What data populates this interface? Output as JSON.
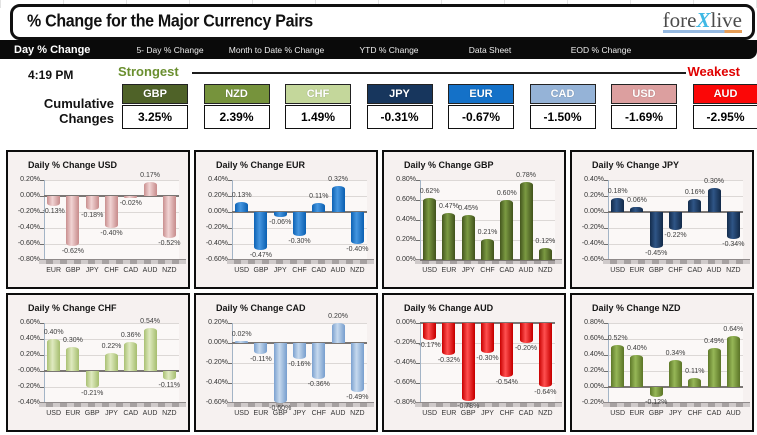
{
  "header": {
    "title": "% Change for the Major Currency Pairs",
    "logo": {
      "part1": "fore",
      "accent": "X",
      "part2": "live"
    }
  },
  "tabs": [
    {
      "label": "Day % Change",
      "active": true
    },
    {
      "label": "5- Day % Change",
      "active": false
    },
    {
      "label": "Month to Date % Change",
      "active": false
    },
    {
      "label": "YTD % Change",
      "active": false
    },
    {
      "label": "Data Sheet",
      "active": false
    },
    {
      "label": "EOD % Change",
      "active": false
    }
  ],
  "summary": {
    "time": "4:19 PM",
    "strongest": "Strongest",
    "weakest": "Weakest",
    "cumulative_line1": "Cumulative",
    "cumulative_line2": "Changes",
    "currencies": [
      {
        "code": "GBP",
        "value": "3.25%",
        "bg": "#4f6228"
      },
      {
        "code": "NZD",
        "value": "2.39%",
        "bg": "#76933c"
      },
      {
        "code": "CHF",
        "value": "1.49%",
        "bg": "#c4d79b"
      },
      {
        "code": "JPY",
        "value": "-0.31%",
        "bg": "#17365d"
      },
      {
        "code": "EUR",
        "value": "-0.67%",
        "bg": "#1471c8"
      },
      {
        "code": "CAD",
        "value": "-1.50%",
        "bg": "#95b3d7"
      },
      {
        "code": "USD",
        "value": "-1.69%",
        "bg": "#dc9f9f"
      },
      {
        "code": "AUD",
        "value": "-2.95%",
        "bg": "#fb0707"
      }
    ]
  },
  "chart_data": [
    {
      "type": "bar",
      "currency": "USD",
      "title": "Daily % Change USD",
      "categories": [
        "EUR",
        "GBP",
        "JPY",
        "CHF",
        "CAD",
        "AUD",
        "NZD"
      ],
      "values": [
        -0.13,
        -0.62,
        -0.18,
        -0.4,
        -0.02,
        0.17,
        -0.52
      ],
      "ylim": [
        -0.8,
        0.2
      ],
      "step": 0.2,
      "grid": true,
      "legend": "none",
      "bar_dark": "#c98f8f",
      "bar_light": "#f1d4d4"
    },
    {
      "type": "bar",
      "currency": "EUR",
      "title": "Daily % Change EUR",
      "categories": [
        "USD",
        "GBP",
        "JPY",
        "CHF",
        "CAD",
        "AUD",
        "NZD"
      ],
      "values": [
        0.13,
        -0.47,
        -0.06,
        -0.3,
        0.11,
        0.32,
        -0.4
      ],
      "ylim": [
        -0.6,
        0.4
      ],
      "step": 0.2,
      "grid": true,
      "legend": "none",
      "bar_dark": "#0d62b4",
      "bar_light": "#4596e0"
    },
    {
      "type": "bar",
      "currency": "GBP",
      "title": "Daily % Change GBP",
      "categories": [
        "USD",
        "EUR",
        "JPY",
        "CHF",
        "CAD",
        "AUD",
        "NZD"
      ],
      "values": [
        0.62,
        0.47,
        0.45,
        0.21,
        0.6,
        0.78,
        0.12
      ],
      "ylim": [
        0.0,
        0.8
      ],
      "step": 0.2,
      "grid": true,
      "legend": "none",
      "bar_dark": "#44561e",
      "bar_light": "#7b9a42"
    },
    {
      "type": "bar",
      "currency": "JPY",
      "title": "Daily % Change JPY",
      "categories": [
        "USD",
        "EUR",
        "GBP",
        "CHF",
        "CAD",
        "AUD",
        "NZD"
      ],
      "values": [
        0.18,
        0.06,
        -0.45,
        -0.22,
        0.16,
        0.3,
        -0.34
      ],
      "ylim": [
        -0.6,
        0.4
      ],
      "step": 0.2,
      "grid": true,
      "legend": "none",
      "bar_dark": "#142c4c",
      "bar_light": "#2f5586"
    },
    {
      "type": "bar",
      "currency": "CHF",
      "title": "Daily % Change CHF",
      "categories": [
        "USD",
        "EUR",
        "GBP",
        "JPY",
        "CAD",
        "AUD",
        "NZD"
      ],
      "values": [
        0.4,
        0.3,
        -0.21,
        0.22,
        0.36,
        0.54,
        -0.11
      ],
      "ylim": [
        -0.4,
        0.6
      ],
      "step": 0.2,
      "grid": true,
      "legend": "none",
      "bar_dark": "#a9c073",
      "bar_light": "#dfeac0"
    },
    {
      "type": "bar",
      "currency": "CAD",
      "title": "Daily % Change CAD",
      "categories": [
        "USD",
        "EUR",
        "GBP",
        "JPY",
        "CHF",
        "AUD",
        "NZD"
      ],
      "values": [
        0.02,
        -0.11,
        -0.6,
        -0.16,
        -0.36,
        0.2,
        -0.49
      ],
      "ylim": [
        -0.6,
        0.2
      ],
      "step": 0.2,
      "grid": true,
      "legend": "none",
      "bar_dark": "#7ba1cf",
      "bar_light": "#c6d9ee"
    },
    {
      "type": "bar",
      "currency": "AUD",
      "title": "Daily % Change AUD",
      "categories": [
        "USD",
        "EUR",
        "GBP",
        "JPY",
        "CHF",
        "CAD",
        "NZD"
      ],
      "values": [
        -0.17,
        -0.32,
        -0.78,
        -0.3,
        -0.54,
        -0.2,
        -0.64
      ],
      "ylim": [
        -0.8,
        0.0
      ],
      "step": 0.2,
      "grid": true,
      "legend": "none",
      "bar_dark": "#c80000",
      "bar_light": "#ff5050"
    },
    {
      "type": "bar",
      "currency": "NZD",
      "title": "Daily % Change NZD",
      "categories": [
        "USD",
        "EUR",
        "GBP",
        "JPY",
        "CHF",
        "CAD",
        "AUD"
      ],
      "values": [
        0.52,
        0.4,
        -0.12,
        0.34,
        0.11,
        0.49,
        0.64
      ],
      "ylim": [
        -0.2,
        0.8
      ],
      "step": 0.2,
      "grid": true,
      "legend": "none",
      "bar_dark": "#5e7829",
      "bar_light": "#96b757"
    }
  ]
}
